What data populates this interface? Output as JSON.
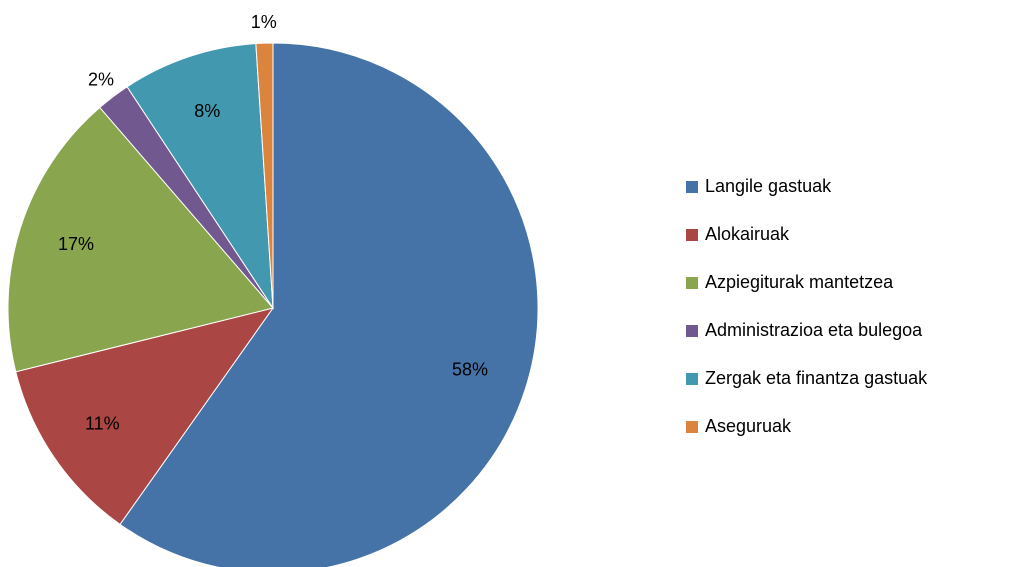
{
  "chart_data": {
    "type": "pie",
    "categories": [
      "Langile gastuak",
      "Alokairuak",
      "Azpiegiturak mantetzea",
      "Administrazioa eta bulegoa",
      "Zergak eta finantza gastuak",
      "Aseguruak"
    ],
    "values": [
      58,
      11,
      17,
      2,
      8,
      1
    ],
    "value_labels": [
      "58%",
      "11%",
      "17%",
      "2%",
      "8%",
      "1%"
    ],
    "colors": [
      "#4572a7",
      "#aa4643",
      "#89a54e",
      "#71588f",
      "#4198af",
      "#db843d"
    ],
    "legend": "right"
  }
}
